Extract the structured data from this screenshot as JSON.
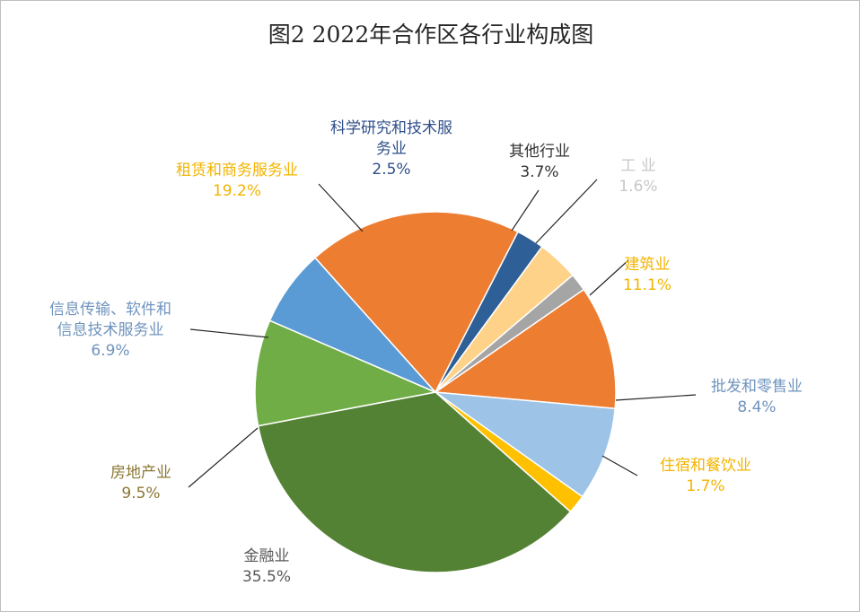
{
  "chart_data": {
    "type": "pie",
    "title": "图2 2022年合作区各行业构成图",
    "slices": [
      {
        "label": "建筑业",
        "label_lines": [
          "建筑业"
        ],
        "value": 11.1,
        "value_text": "11.1%",
        "color": "#ED7D31",
        "label_color": "#F2B400"
      },
      {
        "label": "批发和零售业",
        "label_lines": [
          "批发和零售业"
        ],
        "value": 8.4,
        "value_text": "8.4%",
        "color": "#9DC3E6",
        "label_color": "#6F94BE"
      },
      {
        "label": "住宿和餐饮业",
        "label_lines": [
          "住宿和餐饮业"
        ],
        "value": 1.7,
        "value_text": "1.7%",
        "color": "#FFC000",
        "label_color": "#F2B400"
      },
      {
        "label": "金融业",
        "label_lines": [
          "金融业"
        ],
        "value": 35.5,
        "value_text": "35.5%",
        "color": "#548235",
        "label_color": "#595959"
      },
      {
        "label": "房地产业",
        "label_lines": [
          "房地产业"
        ],
        "value": 9.5,
        "value_text": "9.5%",
        "color": "#70AD47",
        "label_color": "#8C7733"
      },
      {
        "label": "信息传输、软件和信息技术服务业",
        "label_lines": [
          "信息传输、软件和",
          "信息技术服务业"
        ],
        "value": 6.9,
        "value_text": "6.9%",
        "color": "#5B9BD5",
        "label_color": "#6F94BE"
      },
      {
        "label": "租赁和商务服务业",
        "label_lines": [
          "租赁和商务服务业"
        ],
        "value": 19.2,
        "value_text": "19.2%",
        "color": "#ED7D31",
        "label_color": "#F2B400"
      },
      {
        "label": "科学研究和技术服务业",
        "label_lines": [
          "科学研究和技术服",
          "务业"
        ],
        "value": 2.5,
        "value_text": "2.5%",
        "color": "#2E5F97",
        "label_color": "#2F4F8A"
      },
      {
        "label": "其他行业",
        "label_lines": [
          "其他行业"
        ],
        "value": 3.7,
        "value_text": "3.7%",
        "color": "#FFD28A",
        "label_color": "#333333"
      },
      {
        "label": "工 业",
        "label_lines": [
          "工  业"
        ],
        "value": 1.6,
        "value_text": "1.6%",
        "color": "#A5A5A5",
        "label_color": "#C8C8C8"
      }
    ]
  }
}
